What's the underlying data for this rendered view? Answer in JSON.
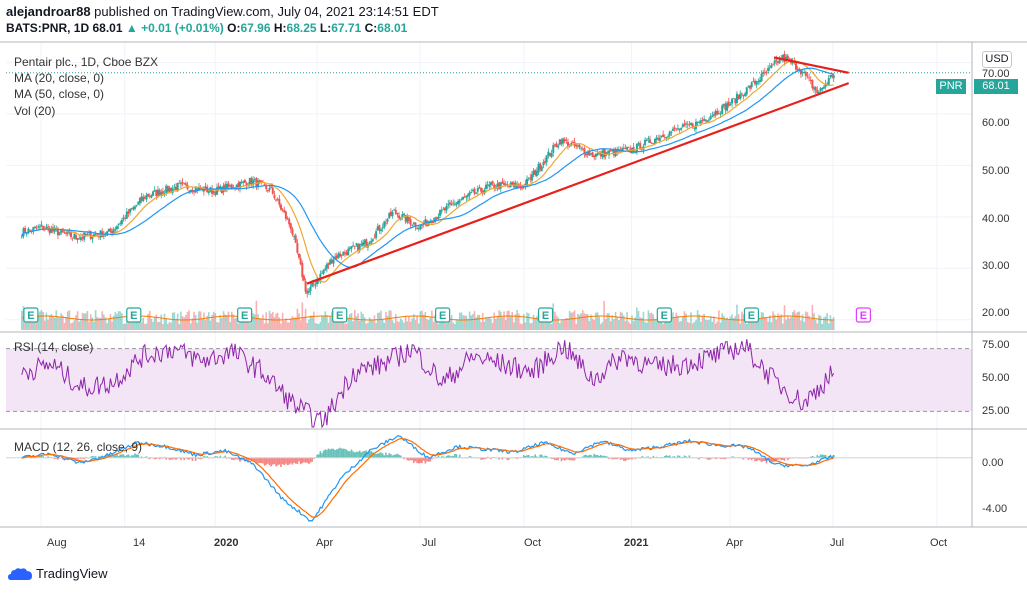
{
  "header": {
    "user": "alejandroar88",
    "published": "published on TradingView.com, July 04, 2021 23:14:51 EDT",
    "symbol": "BATS:PNR, 1D",
    "last": "68.01",
    "change": "+0.01 (+0.01%)",
    "o_label": "O:",
    "o": "67.96",
    "h_label": "H:",
    "h": "68.25",
    "l_label": "L:",
    "l": "67.71",
    "c_label": "C:",
    "c": "68.01"
  },
  "legends": {
    "main_title": "Pentair plc., 1D, Cboe BZX",
    "ma20": "MA (20, close, 0)",
    "ma50": "MA (50, close, 0)",
    "vol": "Vol (20)",
    "rsi": "RSI (14, close)",
    "macd": "MACD (12, 26, close, 9)"
  },
  "price_axis": {
    "currency": "USD",
    "ticks": [
      "70.00",
      "60.00",
      "50.00",
      "40.00",
      "30.00",
      "20.00"
    ],
    "tag_symbol": "PNR",
    "tag_value": "68.01"
  },
  "rsi_axis": {
    "ticks": [
      "75.00",
      "50.00",
      "25.00"
    ]
  },
  "macd_axis": {
    "ticks": [
      "0.00",
      "-4.00"
    ]
  },
  "time_axis": {
    "ticks": [
      "Aug",
      "14",
      "2020",
      "Apr",
      "Jul",
      "Oct",
      "2021",
      "Apr",
      "Jul",
      "Oct"
    ]
  },
  "earnings_marker": "E",
  "footer": {
    "brand": "TradingView"
  },
  "colors": {
    "price_line": "#131722",
    "ma20": "#f0a830",
    "ma50": "#2196f3",
    "trendline": "#e8201c",
    "rsi": "#8e24aa",
    "rsi_band": "#f3e5f5",
    "macd": "#2196f3",
    "signal": "#ff6d00",
    "tag_bg": "#26a69a"
  },
  "chart_data": [
    {
      "type": "line",
      "title": "Pentair plc., 1D, Cboe BZX",
      "x": [
        "2019-07-15",
        "2019-08-01",
        "2019-09-01",
        "2019-10-01",
        "2019-11-01",
        "2019-12-01",
        "2020-01-02",
        "2020-02-03",
        "2020-02-21",
        "2020-03-09",
        "2020-03-23",
        "2020-04-15",
        "2020-05-15",
        "2020-06-08",
        "2020-07-01",
        "2020-08-03",
        "2020-09-01",
        "2020-10-01",
        "2020-11-02",
        "2020-12-01",
        "2021-01-04",
        "2021-02-01",
        "2021-03-01",
        "2021-04-01",
        "2021-05-03",
        "2021-05-17",
        "2021-06-01",
        "2021-06-18",
        "2021-07-02"
      ],
      "series": [
        {
          "name": "Close",
          "values": [
            37,
            38,
            36,
            37,
            44,
            46,
            45,
            47,
            45,
            38,
            25,
            32,
            35,
            41,
            38,
            43,
            46,
            46,
            55,
            52,
            53,
            56,
            58,
            62,
            68,
            71,
            69,
            64,
            68.01
          ]
        }
      ],
      "ylim": [
        18,
        74
      ],
      "annotations": [
        {
          "type": "support_trendline",
          "from": [
            "2020-03-23",
            27
          ],
          "to": [
            "2021-07-15",
            66
          ]
        },
        {
          "type": "resistance_trendline",
          "from": [
            "2021-05-10",
            71
          ],
          "to": [
            "2021-07-15",
            68
          ]
        }
      ]
    },
    {
      "type": "line",
      "title": "RSI (14, close)",
      "series": [
        {
          "name": "RSI",
          "values": [
            55,
            60,
            45,
            48,
            65,
            70,
            62,
            68,
            55,
            35,
            22,
            55,
            60,
            70,
            48,
            65,
            60,
            55,
            72,
            50,
            66,
            58,
            60,
            65,
            72,
            50,
            35,
            55
          ]
        }
      ],
      "ylim": [
        20,
        80
      ]
    },
    {
      "type": "line",
      "title": "MACD (12, 26, close, 9)",
      "series": [
        {
          "name": "MACD",
          "values": [
            0,
            0.3,
            -0.4,
            0.2,
            1.1,
            0.8,
            0.2,
            0.5,
            -0.5,
            -3,
            -4.6,
            -1.5,
            0.5,
            1.6,
            0,
            0.8,
            0.6,
            0.4,
            1.1,
            0.3,
            1.2,
            0.5,
            0.8,
            1.2,
            0.9,
            0.8,
            -0.5,
            -0.6,
            0.1
          ]
        }
      ],
      "ylim": [
        -5,
        2
      ]
    }
  ]
}
